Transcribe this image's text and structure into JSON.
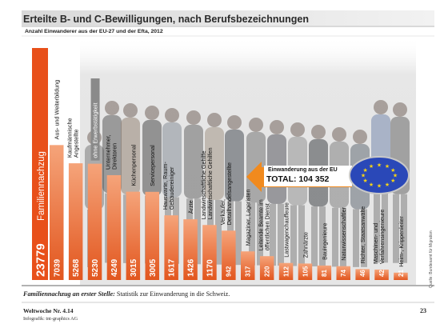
{
  "header": {
    "title": "Erteilte B- und C-Bewilligungen, nach Berufsbezeichnungen",
    "subtitle": "Anzahl Einwanderer aus der EU-27 und der Efta, 2012",
    "source": "Quelle: Bundesamt für Migration"
  },
  "callout": {
    "label": "Einwanderung aus der EU",
    "total": "TOTAL: 104 352"
  },
  "caption": {
    "lead": "Familiennachzug an erster Stelle:",
    "text": " Statistik zur Einwanderung in die Schweiz."
  },
  "footer": {
    "publication": "Weltwoche Nr. 4.14",
    "credit": "Infografik: tnt-graphics AG",
    "page": "23"
  },
  "colors": {
    "bar_gradient_top": "#f5a47a",
    "bar_gradient_bottom": "#e2561e",
    "highlight_bar": "#e8501a",
    "gray_tag": "#8a8a8a",
    "title_band": "#e7e7e7",
    "flag_blue": "#2a48b8",
    "flag_star": "#f7d417"
  },
  "chart_data": {
    "type": "bar",
    "title": "Erteilte B- und C-Bewilligungen, nach Berufsbezeichnungen",
    "subtitle": "Anzahl Einwanderer aus der EU-27 und der Efta, 2012",
    "total_label": "Einwanderung aus der EU",
    "total_value": 104352,
    "categories": [
      "Familiennachzug",
      "Aus- und Weiterbildung",
      "Kaufmännische Angestellte",
      "ohne Erwerbstätigkeit",
      "Unternehmer, Direktoren",
      "Küchenpersonal",
      "Servicepersonal",
      "Hauswarte, Raum- Gebäudereiniger",
      "Ärzte",
      "Landwirtschaftliche Gehilfen",
      "Verkäufer, Detailhandelsangestellte",
      "Magaziner, Lageristen",
      "Leitende Beamte im öffentlichen Dienst",
      "Lastwagenchauffeure",
      "Zahnärzte",
      "Bauingenieure",
      "Naturwissenschaftler",
      "Richter, Staatsanwälte",
      "Maschinen- und Verfahrensingenieure",
      "Heim-, Krippenleiter"
    ],
    "values": [
      23779,
      7039,
      5268,
      5230,
      4249,
      3015,
      3005,
      1617,
      1426,
      1170,
      942,
      317,
      220,
      112,
      105,
      81,
      74,
      46,
      42,
      21
    ],
    "value_labels": [
      "23779",
      "7039",
      "5268",
      "5230",
      "4249",
      "3015",
      "3005",
      "1617",
      "1426",
      "1170",
      "942",
      "317",
      "220",
      "112",
      "105",
      "81",
      "74",
      "46",
      "42",
      "21"
    ],
    "legend": "none"
  }
}
